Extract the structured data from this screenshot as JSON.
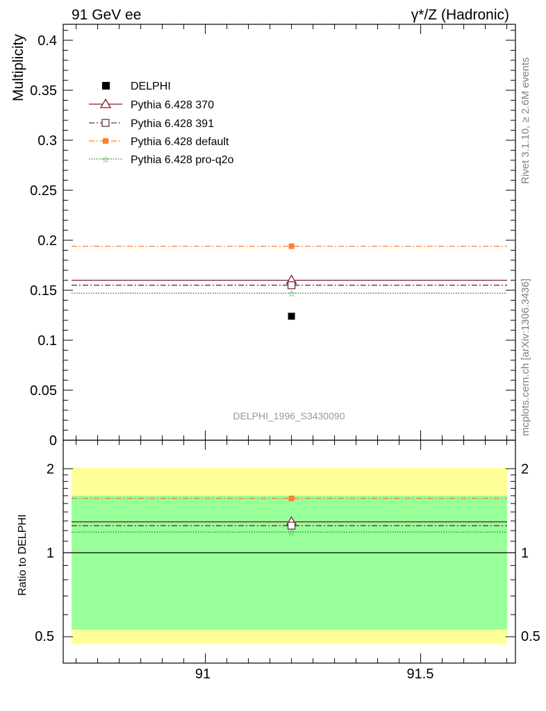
{
  "header": {
    "left_title": "91 GeV ee",
    "right_title": "γ*/Z (Hadronic)"
  },
  "side_text": {
    "rivet": "Rivet 3.1.10, ≥ 2.6M events",
    "mcplots": "mcplots.cern.ch [arXiv:1306.3436]"
  },
  "analysis_label": "DELPHI_1996_S3430090",
  "main_axis": {
    "ylabel": "Multiplicity",
    "yticks": [
      "0",
      "0.05",
      "0.1",
      "0.15",
      "0.2",
      "0.25",
      "0.3",
      "0.35",
      "0.4"
    ]
  },
  "ratio_axis": {
    "ylabel": "Ratio to DELPHI",
    "yticks_left": [
      "0.5",
      "1",
      "2"
    ],
    "yticks_right": [
      "0.5",
      "1",
      "2"
    ]
  },
  "x_axis": {
    "xticks": [
      "91",
      "91.5"
    ]
  },
  "legend": [
    {
      "label": "DELPHI",
      "color": "#000000"
    },
    {
      "label": "Pythia 6.428 370",
      "color": "#7f1d2a"
    },
    {
      "label": "Pythia 6.428 391",
      "color": "#5e3344"
    },
    {
      "label": "Pythia 6.428 default",
      "color": "#ff7f2a"
    },
    {
      "label": "Pythia 6.428 pro-q2o",
      "color": "#1a8c1a"
    }
  ],
  "chart_data": [
    {
      "type": "scatter",
      "panel": "main",
      "xlim": [
        90.67,
        91.72
      ],
      "ylim": [
        0,
        0.415
      ],
      "xlabel": "",
      "ylabel": "Multiplicity",
      "series": [
        {
          "name": "DELPHI",
          "x": [
            91.2
          ],
          "y": [
            0.124
          ],
          "style": "square-marker",
          "color": "#000000"
        },
        {
          "name": "Pythia 6.428 370",
          "x": [
            91.2
          ],
          "y": [
            0.16
          ],
          "style": "solid-triangle",
          "color": "#7f1d2a"
        },
        {
          "name": "Pythia 6.428 391",
          "x": [
            91.2
          ],
          "y": [
            0.155
          ],
          "style": "dashdot-open-square",
          "color": "#5e3344"
        },
        {
          "name": "Pythia 6.428 default",
          "x": [
            91.2
          ],
          "y": [
            0.194
          ],
          "style": "dashdot-filled-square",
          "color": "#ff7f2a"
        },
        {
          "name": "Pythia 6.428 pro-q2o",
          "x": [
            91.2
          ],
          "y": [
            0.147
          ],
          "style": "dotted-star",
          "color": "#1a8c1a"
        }
      ]
    },
    {
      "type": "scatter",
      "panel": "ratio",
      "xlim": [
        90.67,
        91.72
      ],
      "ylim": [
        0.42,
        2.3
      ],
      "log_y": true,
      "ylabel": "Ratio to DELPHI",
      "bands": [
        {
          "label": "stat",
          "low": 0.47,
          "high": 2.02,
          "color": "#ffff99"
        },
        {
          "label": "stat+syst",
          "low": 0.53,
          "high": 1.6,
          "color": "#99ff99"
        }
      ],
      "series": [
        {
          "name": "Pythia 6.428 370",
          "x": [
            91.2
          ],
          "y": [
            1.29
          ]
        },
        {
          "name": "Pythia 6.428 391",
          "x": [
            91.2
          ],
          "y": [
            1.25
          ]
        },
        {
          "name": "Pythia 6.428 default",
          "x": [
            91.2
          ],
          "y": [
            1.565
          ]
        },
        {
          "name": "Pythia 6.428 pro-q2o",
          "x": [
            91.2
          ],
          "y": [
            1.185
          ]
        }
      ]
    }
  ]
}
